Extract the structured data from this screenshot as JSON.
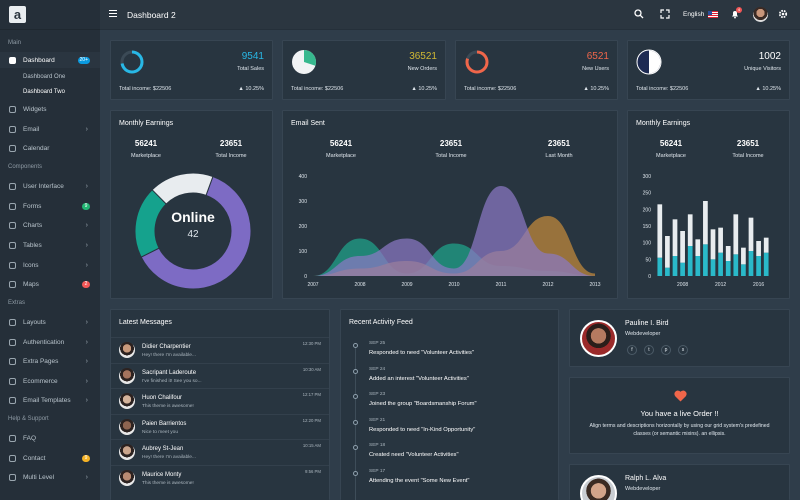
{
  "sidebar": {
    "logo": "a",
    "sections": {
      "main": "Main",
      "components": "Components",
      "extras": "Extras",
      "help": "Help & Support"
    },
    "items": [
      {
        "label": "Dashboard",
        "badge": "20+",
        "badge_color": "#0a9ae0",
        "active": true
      },
      {
        "label": "Widgets"
      },
      {
        "label": "Email",
        "chevron": true
      },
      {
        "label": "Calendar"
      },
      {
        "label": "User Interface",
        "chevron": true
      },
      {
        "label": "Forms",
        "badge": "9",
        "badge_color": "#22b573"
      },
      {
        "label": "Charts",
        "chevron": true
      },
      {
        "label": "Tables",
        "chevron": true
      },
      {
        "label": "Icons",
        "chevron": true
      },
      {
        "label": "Maps",
        "badge": "2",
        "badge_color": "#f25757"
      },
      {
        "label": "Layouts",
        "chevron": true
      },
      {
        "label": "Authentication",
        "chevron": true
      },
      {
        "label": "Extra Pages",
        "chevron": true
      },
      {
        "label": "Ecommerce",
        "chevron": true
      },
      {
        "label": "Email Templates",
        "chevron": true
      },
      {
        "label": "FAQ"
      },
      {
        "label": "Contact",
        "badge": "9",
        "badge_color": "#f5b225"
      },
      {
        "label": "Multi Level",
        "chevron": true
      }
    ],
    "subitems": [
      "Dashboard One",
      "Dashboard Two"
    ]
  },
  "topbar": {
    "title": "Dashboard 2",
    "language": "English",
    "notifications": "4"
  },
  "stats": [
    {
      "value": "9541",
      "label": "Total Sales",
      "income": "Total income: $22506",
      "pct": "10.25%",
      "color": "#28b8e6",
      "fraction": 0.72
    },
    {
      "value": "36521",
      "label": "New Orders",
      "income": "Total income: $22506",
      "pct": "10.25%",
      "color": "#d0b834",
      "fraction": 0.3
    },
    {
      "value": "6521",
      "label": "New Users",
      "income": "Total income: $22506",
      "pct": "10.25%",
      "color": "#f0664a",
      "fraction": 0.8
    },
    {
      "value": "1002",
      "label": "Unique Visitors",
      "income": "Total income: $22506",
      "pct": "10.25%",
      "color": "#ffffff",
      "fraction": 0.5
    }
  ],
  "monthly1": {
    "title": "Monthly Earnings",
    "kpis": [
      {
        "value": "56241",
        "label": "Marketplace"
      },
      {
        "value": "23651",
        "label": "Total Income"
      }
    ],
    "center": "Online",
    "center_value": "42"
  },
  "email_sent": {
    "title": "Email Sent",
    "kpis": [
      {
        "value": "56241",
        "label": "Marketplace"
      },
      {
        "value": "23651",
        "label": "Total Income"
      },
      {
        "value": "23651",
        "label": "Last Month"
      }
    ]
  },
  "monthly2": {
    "title": "Monthly Earnings",
    "kpis": [
      {
        "value": "56241",
        "label": "Marketplace"
      },
      {
        "value": "23651",
        "label": "Total Income"
      }
    ]
  },
  "chart_data": [
    {
      "type": "pie",
      "labels": [
        "Purple",
        "Teal",
        "White"
      ],
      "values": [
        62,
        20,
        18
      ],
      "colors": [
        "#7d6bc4",
        "#15a28d",
        "#e8ecef"
      ]
    },
    {
      "type": "area",
      "x": [
        2007,
        2008,
        2009,
        2010,
        2011,
        2012,
        2013
      ],
      "ylim": [
        0,
        400
      ],
      "yticks": [
        0,
        100,
        200,
        300,
        400
      ],
      "series": [
        {
          "color": "#1ea58b",
          "values": [
            0,
            150,
            10,
            130,
            40,
            20,
            0
          ]
        },
        {
          "color": "#c48a3a",
          "values": [
            0,
            30,
            60,
            10,
            100,
            240,
            10
          ]
        },
        {
          "color": "#8a78c4",
          "values": [
            0,
            80,
            150,
            30,
            360,
            90,
            0
          ]
        }
      ]
    },
    {
      "type": "bar",
      "xticks": [
        2008,
        2012,
        2016
      ],
      "ylim": [
        0,
        300
      ],
      "yticks": [
        0,
        50,
        100,
        150,
        200,
        250,
        300
      ],
      "series": [
        {
          "color": "#2ab9c9",
          "values": [
            55,
            25,
            60,
            40,
            90,
            60,
            95,
            50,
            70,
            45,
            65,
            35,
            75,
            60,
            70
          ]
        },
        {
          "color": "#e8ecef",
          "values": [
            160,
            95,
            110,
            95,
            95,
            50,
            130,
            90,
            75,
            45,
            120,
            50,
            100,
            45,
            45
          ]
        }
      ]
    }
  ],
  "messages": {
    "title": "Latest Messages",
    "items": [
      {
        "name": "Didier Charpentier",
        "text": "Hey! there I'm available...",
        "time": "12:30 PM"
      },
      {
        "name": "Sacripant Laderoute",
        "text": "I've finished it! See you so...",
        "time": "10:30 AM"
      },
      {
        "name": "Huon Chalifour",
        "text": "This theme is awesome!",
        "time": "12:17 PM"
      },
      {
        "name": "Paien Barrientos",
        "text": "Nice to meet you",
        "time": "12:20 PM"
      },
      {
        "name": "Aubrey St-Jean",
        "text": "Hey! there I'm available...",
        "time": "10:15 AM"
      },
      {
        "name": "Maurice Monty",
        "text": "This theme is awesome!",
        "time": "9:56 PM"
      }
    ]
  },
  "activity": {
    "title": "Recent Activity Feed",
    "items": [
      {
        "date": "SEP 25",
        "event": "Responded to need \"Volunteer Activities\""
      },
      {
        "date": "SEP 24",
        "event": "Added an interest \"Volunteer Activities\""
      },
      {
        "date": "SEP 23",
        "event": "Joined the group \"Boardsmanship Forum\""
      },
      {
        "date": "SEP 21",
        "event": "Responded to need \"In-Kind Opportunity\""
      },
      {
        "date": "SEP 18",
        "event": "Created need \"Volunteer Activities\""
      },
      {
        "date": "SEP 17",
        "event": "Attending the event \"Some New Event\""
      }
    ]
  },
  "profile1": {
    "name": "Pauline I. Bird",
    "role": "Webdeveloper",
    "social": [
      "f",
      "t",
      "p",
      "s"
    ]
  },
  "order": {
    "title": "You have a live Order !!",
    "text": "Align terms and descriptions horizontally by using our grid system's predefined classes (or semantic mixins). an ellipsis."
  },
  "profile2": {
    "name": "Ralph L. Alva",
    "role": "Webdeveloper"
  }
}
